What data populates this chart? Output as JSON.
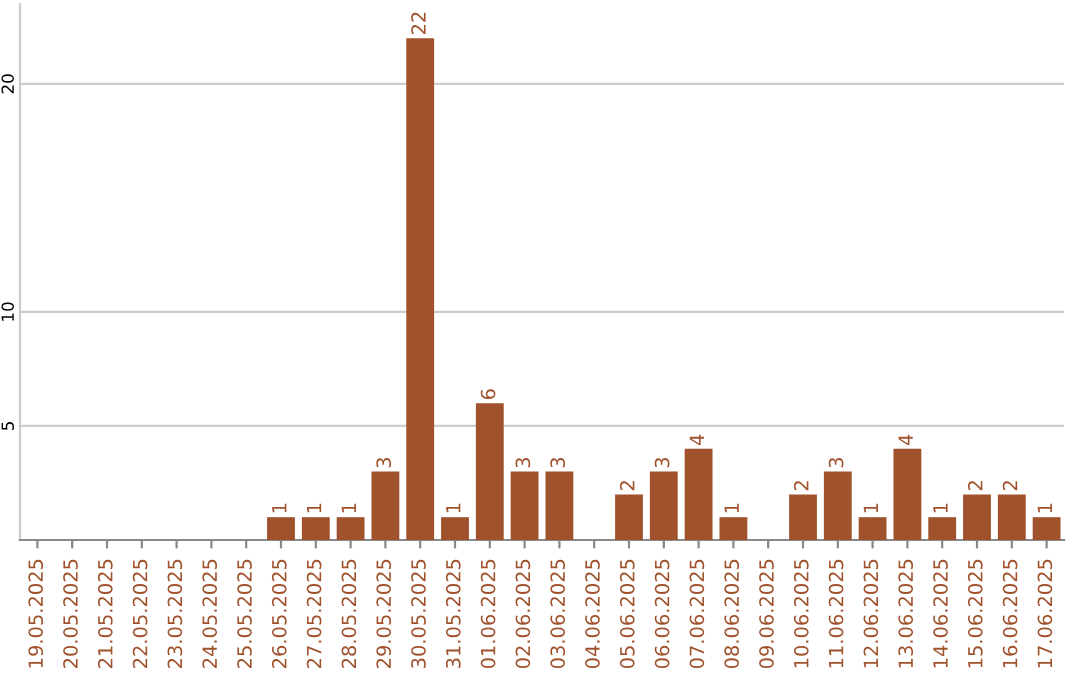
{
  "chart_data": {
    "type": "bar",
    "categories": [
      "19.05.2025",
      "20.05.2025",
      "21.05.2025",
      "22.05.2025",
      "23.05.2025",
      "24.05.2025",
      "25.05.2025",
      "26.05.2025",
      "27.05.2025",
      "28.05.2025",
      "29.05.2025",
      "30.05.2025",
      "31.05.2025",
      "01.06.2025",
      "02.06.2025",
      "03.06.2025",
      "04.06.2025",
      "05.06.2025",
      "06.06.2025",
      "07.06.2025",
      "08.06.2025",
      "09.06.2025",
      "10.06.2025",
      "11.06.2025",
      "12.06.2025",
      "13.06.2025",
      "14.06.2025",
      "15.06.2025",
      "16.06.2025",
      "17.06.2025"
    ],
    "values": [
      0,
      0,
      0,
      0,
      0,
      0,
      0,
      1,
      1,
      1,
      3,
      22,
      1,
      6,
      3,
      3,
      0,
      2,
      3,
      4,
      1,
      0,
      2,
      3,
      1,
      4,
      1,
      2,
      2,
      1
    ],
    "value_labels": [
      null,
      null,
      null,
      null,
      null,
      null,
      null,
      "1",
      "1",
      "1",
      "3",
      "22",
      "1",
      "6",
      "3",
      "3",
      null,
      "2",
      "3",
      "4",
      "1",
      null,
      "2",
      "3",
      "1",
      "4",
      "1",
      "2",
      "2",
      "1"
    ],
    "color": "#a0522d",
    "ylim": [
      0,
      23.5
    ],
    "yticks": [
      5,
      10,
      20
    ],
    "grid": "y",
    "legend": false
  }
}
